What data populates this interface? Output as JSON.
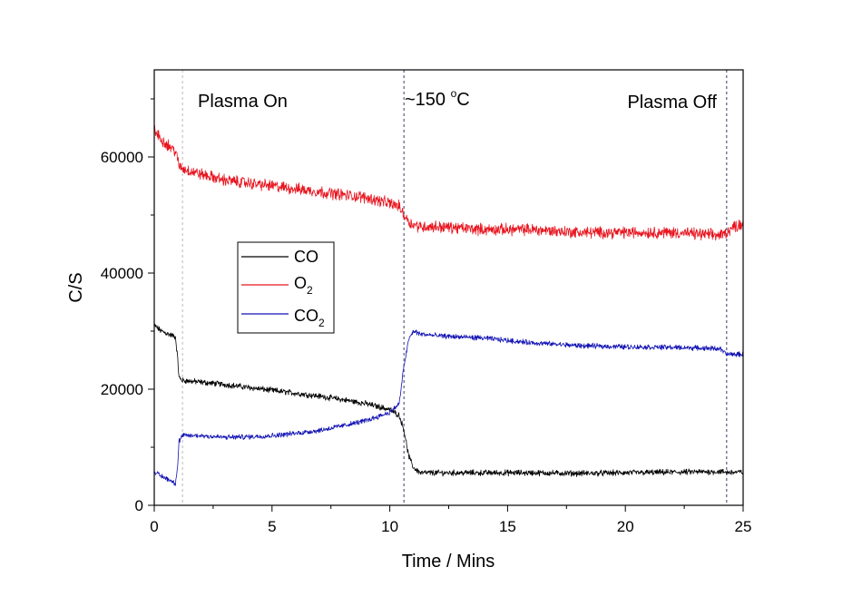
{
  "chart_data": {
    "type": "line",
    "xlabel": "Time / Mins",
    "ylabel": "C/S",
    "xlim": [
      0,
      25
    ],
    "ylim": [
      0,
      75000
    ],
    "x_ticks": [
      0,
      5,
      10,
      15,
      20,
      25
    ],
    "y_ticks": [
      0,
      20000,
      40000,
      60000
    ],
    "x_tick_labels": [
      "0",
      "5",
      "10",
      "15",
      "20",
      "25"
    ],
    "y_tick_labels": [
      "0",
      "20000",
      "40000",
      "60000"
    ],
    "grid": false,
    "legend": {
      "placement": "center-left",
      "entries": [
        {
          "base": "CO",
          "sub": ""
        },
        {
          "base": "O",
          "sub": "2"
        },
        {
          "base": "CO",
          "sub": "2"
        }
      ]
    },
    "annotations": [
      {
        "text": "Plasma On",
        "x": 1.2
      },
      {
        "base": "~150 ",
        "sup": "o",
        "tail": "C",
        "x": 10.6
      },
      {
        "text": "Plasma Off",
        "x": 24.3
      }
    ],
    "vlines": [
      {
        "x": 1.2,
        "color": "#bbbbbb"
      },
      {
        "x": 10.6,
        "color": "#3a3a6a"
      },
      {
        "x": 24.3,
        "color": "#3a3a6a"
      }
    ],
    "series": [
      {
        "name": "CO",
        "color": "#000000",
        "noise": 400,
        "x": [
          0,
          0.3,
          0.6,
          0.9,
          1.0,
          1.05,
          1.2,
          2,
          3,
          4,
          5,
          6,
          7,
          8,
          9,
          10,
          10.4,
          10.6,
          10.8,
          11.0,
          11.3,
          12,
          14,
          16,
          18,
          20,
          22,
          24,
          24.3,
          25
        ],
        "y": [
          31000,
          30000,
          29500,
          29000,
          25000,
          22000,
          21500,
          21200,
          20800,
          20300,
          19800,
          19300,
          18800,
          18200,
          17500,
          16500,
          15500,
          13000,
          8500,
          6500,
          5600,
          5600,
          5600,
          5600,
          5500,
          5600,
          5700,
          5800,
          5700,
          5700
        ]
      },
      {
        "name": "O2",
        "color": "#e8141e",
        "noise": 800,
        "x": [
          0,
          0.3,
          0.6,
          0.9,
          1.05,
          1.2,
          2,
          3,
          4,
          5,
          6,
          7,
          8,
          9,
          10,
          10.4,
          10.6,
          10.9,
          11.3,
          12,
          14,
          16,
          18,
          20,
          22,
          24,
          24.3,
          24.6,
          25
        ],
        "y": [
          64500,
          63000,
          62000,
          61000,
          58500,
          58000,
          57000,
          56000,
          55500,
          55000,
          54500,
          54000,
          53500,
          53000,
          52000,
          51500,
          50000,
          48500,
          48000,
          48000,
          47500,
          47500,
          47000,
          47000,
          47000,
          46500,
          47000,
          48000,
          48500
        ]
      },
      {
        "name": "CO2",
        "color": "#1212b4",
        "noise": 350,
        "x": [
          0,
          0.3,
          0.6,
          0.9,
          1.0,
          1.05,
          1.2,
          2,
          3,
          4,
          5,
          6,
          7,
          8,
          9,
          10,
          10.4,
          10.6,
          10.8,
          11.0,
          11.3,
          12,
          14,
          16,
          18,
          20,
          22,
          24,
          24.3,
          25
        ],
        "y": [
          5800,
          5000,
          4500,
          3800,
          7000,
          11000,
          12000,
          12000,
          11700,
          11800,
          12000,
          12400,
          12900,
          13700,
          14600,
          16000,
          17500,
          24000,
          28500,
          30000,
          29500,
          29200,
          28800,
          28000,
          27500,
          27300,
          27200,
          27000,
          26000,
          26000
        ]
      }
    ]
  }
}
